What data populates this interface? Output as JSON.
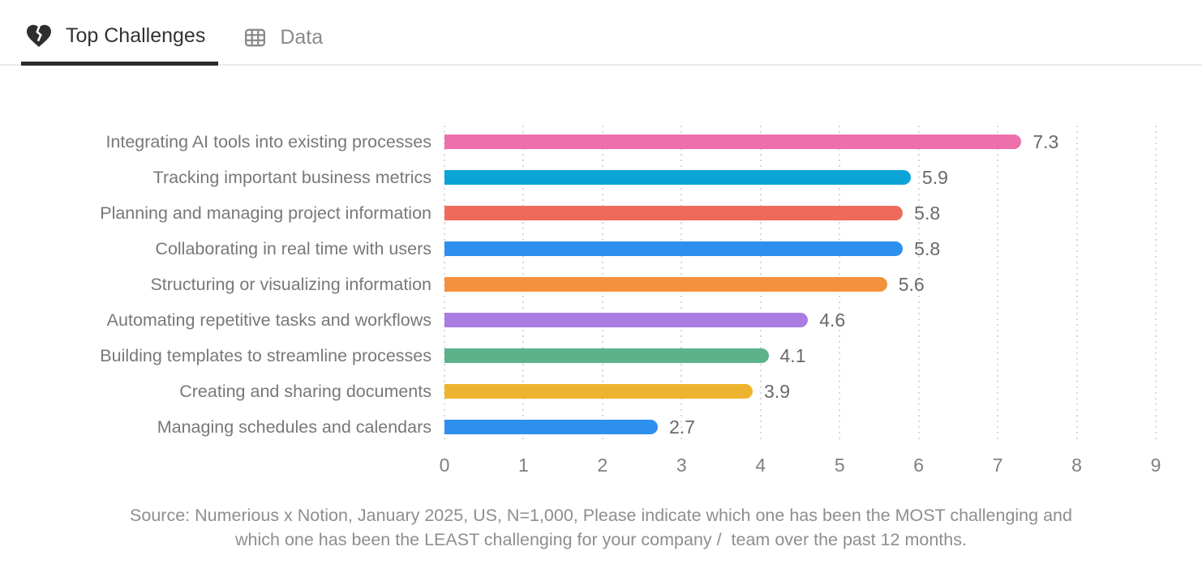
{
  "tabs": [
    {
      "label": "Top Challenges",
      "icon": "broken-heart-icon",
      "active": true
    },
    {
      "label": "Data",
      "icon": "table-icon",
      "active": false
    }
  ],
  "chart_data": {
    "type": "bar",
    "orientation": "horizontal",
    "title": "",
    "xlabel": "",
    "ylabel": "",
    "categories": [
      "Integrating AI tools into existing processes",
      "Tracking important business metrics",
      "Planning and managing project information",
      "Collaborating in real time with users",
      "Structuring or visualizing information",
      "Automating repetitive tasks and workflows",
      "Building templates to streamline processes",
      "Creating and sharing documents",
      "Managing schedules and calendars"
    ],
    "values": [
      7.3,
      5.9,
      5.8,
      5.8,
      5.6,
      4.6,
      4.1,
      3.9,
      2.7
    ],
    "value_labels": [
      "7.3",
      "5.9",
      "5.8",
      "5.8",
      "5.6",
      "4.6",
      "4.1",
      "3.9",
      "2.7"
    ],
    "bar_colors": [
      "#ed6fab",
      "#0ba4d7",
      "#ee6a5b",
      "#2e90ee",
      "#f4913e",
      "#a97de2",
      "#5cb28b",
      "#efb42f",
      "#2e90ee"
    ],
    "xlim": [
      0,
      9
    ],
    "x_ticks": [
      0,
      1,
      2,
      3,
      4,
      5,
      6,
      7,
      8,
      9
    ],
    "grid": "dotted-vertical",
    "legend": "none"
  },
  "source": {
    "lines": [
      "Source: Numerious x Notion, January 2025, US, N=1,000, Please indicate which one has been the MOST challenging and",
      "which one has been the LEAST challenging for your company /  team over the past 12 months."
    ]
  },
  "colors": {
    "active_tab_text": "#34322f",
    "inactive_tab_text": "#8a8a8d",
    "active_tab_underline": "#2c2c2e",
    "tabbar_divider": "#ebebeb",
    "gridline": "#d8d8d8",
    "category_text": "#77787b",
    "value_text": "#68696c",
    "tick_text": "#7e7f82",
    "source_text": "#8d8e90"
  }
}
